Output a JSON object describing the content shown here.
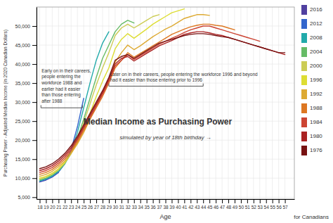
{
  "chart_data": {
    "type": "line",
    "title": "Median Income as Purchasing Power",
    "subtitle": "simulated by year of 18th birthday  →",
    "xlabel": "Age",
    "ylabel": "Purchasing Power - Adjusted Median Income (in 2020 Canadian Dollars)",
    "xlim": [
      17.5,
      58.5
    ],
    "ylim": [
      4500,
      55000
    ],
    "xticks": [
      18,
      19,
      20,
      21,
      22,
      23,
      24,
      25,
      26,
      27,
      28,
      29,
      30,
      31,
      32,
      33,
      34,
      35,
      36,
      37,
      38,
      39,
      40,
      41,
      42,
      43,
      44,
      45,
      46,
      47,
      48,
      49,
      50,
      51,
      52,
      53,
      54,
      55,
      56,
      57
    ],
    "yticks": [
      {
        "value": 5000,
        "label": "5,000"
      },
      {
        "value": 10000,
        "label": "10,000"
      },
      {
        "value": 15000,
        "label": "15,000"
      },
      {
        "value": 20000,
        "label": "20,000"
      },
      {
        "value": 25000,
        "label": "25,000"
      },
      {
        "value": 30000,
        "label": "30,000"
      },
      {
        "value": 35000,
        "label": "35,000"
      },
      {
        "value": 40000,
        "label": "40,000"
      },
      {
        "value": 45000,
        "label": "45,000"
      },
      {
        "value": 50000,
        "label": "50,000"
      }
    ],
    "grid": true,
    "legend": "right",
    "series": [
      {
        "name": "2016",
        "color": "#5040a0",
        "x": [
          18,
          19,
          20,
          21
        ],
        "values": [
          9000,
          9500,
          10300,
          11500
        ]
      },
      {
        "name": "2012",
        "color": "#3366cc",
        "x": [
          18,
          19,
          20,
          21,
          22,
          23,
          24,
          25
        ],
        "values": [
          9100,
          9600,
          10400,
          11600,
          13800,
          17500,
          23500,
          31000
        ]
      },
      {
        "name": "2008",
        "color": "#22aaaa",
        "x": [
          18,
          19,
          20,
          21,
          22,
          23,
          24,
          25,
          26,
          27,
          28,
          29
        ],
        "values": [
          9300,
          9800,
          10600,
          11800,
          13800,
          17000,
          22000,
          28500,
          35000,
          41000,
          45500,
          48500
        ]
      },
      {
        "name": "2004",
        "color": "#66bb66",
        "x": [
          18,
          19,
          20,
          21,
          22,
          23,
          24,
          25,
          26,
          27,
          28,
          29,
          30,
          31,
          32,
          33
        ],
        "values": [
          9500,
          10000,
          10800,
          12000,
          13800,
          16500,
          20500,
          25500,
          31000,
          36500,
          41500,
          45000,
          48500,
          50500,
          51500,
          50800
        ]
      },
      {
        "name": "2000",
        "color": "#cccc55",
        "x": [
          18,
          19,
          20,
          21,
          22,
          23,
          24,
          25,
          26,
          27,
          28,
          29,
          30,
          31,
          32,
          33,
          34,
          35,
          36,
          37
        ],
        "values": [
          9800,
          10300,
          11100,
          12300,
          14000,
          16500,
          20000,
          24500,
          29500,
          34500,
          39000,
          43000,
          47500,
          49500,
          50500,
          49500,
          50500,
          51500,
          52500,
          53000
        ]
      },
      {
        "name": "1996",
        "color": "#dddd33",
        "x": [
          18,
          19,
          20,
          21,
          22,
          23,
          24,
          25,
          26,
          27,
          28,
          29,
          30,
          31,
          32,
          33,
          34,
          35,
          36,
          37,
          38,
          39,
          40,
          41
        ],
        "values": [
          10000,
          10500,
          11300,
          12500,
          14200,
          16500,
          19500,
          23000,
          27000,
          31500,
          35500,
          39000,
          44000,
          46500,
          48000,
          46800,
          48000,
          49200,
          50500,
          51500,
          52500,
          53500,
          54000,
          54500
        ]
      },
      {
        "name": "1992",
        "color": "#ddaa33",
        "x": [
          18,
          19,
          20,
          21,
          22,
          23,
          24,
          25,
          26,
          27,
          28,
          29,
          30,
          31,
          32,
          33,
          34,
          35,
          36,
          37,
          38,
          39,
          40,
          41,
          42,
          43,
          44,
          45
        ],
        "values": [
          10500,
          11000,
          11800,
          13000,
          14500,
          16500,
          19000,
          22000,
          25500,
          29000,
          32500,
          36000,
          40500,
          43000,
          45000,
          43800,
          44800,
          46000,
          47200,
          48200,
          49200,
          50000,
          51000,
          52000,
          52500,
          53000,
          53000,
          52800
        ]
      },
      {
        "name": "1988",
        "color": "#dd7722",
        "x": [
          18,
          19,
          20,
          21,
          22,
          23,
          24,
          25,
          26,
          27,
          28,
          29,
          30,
          31,
          32,
          33,
          34,
          35,
          36,
          37,
          38,
          39,
          40,
          41,
          42,
          43,
          44,
          45,
          46,
          47,
          48,
          49
        ],
        "values": [
          11000,
          11500,
          12300,
          13500,
          15000,
          17000,
          19500,
          22500,
          25500,
          28500,
          31500,
          35000,
          39000,
          41000,
          43000,
          41800,
          42800,
          43800,
          44800,
          45800,
          46800,
          47800,
          48500,
          49200,
          49800,
          50200,
          50500,
          50500,
          50200,
          50000,
          49500,
          49000
        ]
      },
      {
        "name": "1984",
        "color": "#cc4433",
        "x": [
          18,
          19,
          20,
          21,
          22,
          23,
          24,
          25,
          26,
          27,
          28,
          29,
          30,
          31,
          32,
          33,
          34,
          35,
          36,
          37,
          38,
          39,
          40,
          41,
          42,
          43,
          44,
          45,
          46,
          47,
          48,
          49,
          50,
          51,
          52,
          53
        ],
        "values": [
          11500,
          12000,
          12800,
          14000,
          15500,
          17500,
          20000,
          23000,
          26000,
          29000,
          32000,
          35500,
          39500,
          41000,
          42500,
          41200,
          42200,
          43200,
          44200,
          45200,
          46000,
          46800,
          47500,
          48300,
          49000,
          49500,
          50000,
          50000,
          49500,
          49000,
          48500,
          48000,
          47500,
          47000,
          46500,
          46000
        ]
      },
      {
        "name": "1980",
        "color": "#aa2222",
        "x": [
          18,
          19,
          20,
          21,
          22,
          23,
          24,
          25,
          26,
          27,
          28,
          29,
          30,
          31,
          32,
          33,
          34,
          35,
          36,
          37,
          38,
          39,
          40,
          41,
          42,
          43,
          44,
          45,
          46,
          47,
          48,
          49,
          50,
          51,
          52,
          53,
          54,
          55,
          56,
          57
        ],
        "values": [
          12000,
          12500,
          13300,
          14500,
          16000,
          18000,
          20500,
          23500,
          26500,
          29500,
          32500,
          36000,
          40000,
          41500,
          42000,
          40800,
          41800,
          42800,
          43800,
          44800,
          45500,
          46200,
          47000,
          47800,
          48200,
          48500,
          48500,
          48200,
          47800,
          47500,
          47000,
          46500,
          46000,
          45500,
          45000,
          44500,
          44000,
          43500,
          43000,
          42500
        ]
      },
      {
        "name": "1976",
        "color": "#771111",
        "x": [
          18,
          19,
          20,
          21,
          22,
          23,
          24,
          25,
          26,
          27,
          28,
          29,
          30,
          31,
          32,
          33,
          34,
          35,
          36,
          37,
          38,
          39,
          40,
          41,
          42,
          43,
          44,
          45,
          46,
          47,
          48,
          49,
          50,
          51,
          52,
          53,
          54,
          55,
          56,
          57
        ],
        "values": [
          12500,
          13000,
          13800,
          15000,
          16500,
          18500,
          21000,
          24000,
          27000,
          30000,
          33000,
          36500,
          41000,
          42000,
          42500,
          41500,
          42500,
          43500,
          44500,
          45500,
          46000,
          46500,
          47000,
          47500,
          47800,
          48000,
          48000,
          47800,
          47500,
          47200,
          47000,
          46500,
          46000,
          45500,
          45000,
          44500,
          44000,
          43500,
          43000,
          43000
        ]
      }
    ],
    "annotations": [
      "Early on in their careers,\npeople entering the\nworkforce 1988 and\nearlier had it easier\nthan those entering\nafter 1988",
      "Later on in their careers, people entering the workforce 1996 and beyond\nhad it easier than those entering prior to 1996",
      "for Canadians"
    ]
  }
}
